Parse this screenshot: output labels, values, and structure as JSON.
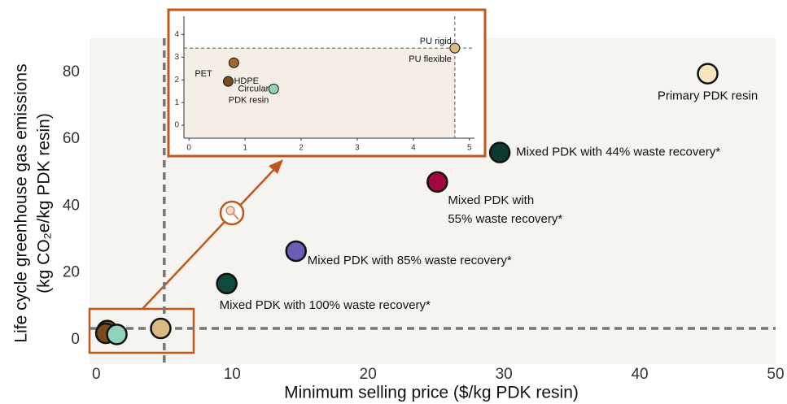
{
  "chart_data": [
    {
      "type": "scatter",
      "x_label": "Minimum selling price ($/kg PDK resin)",
      "y_label": [
        "Life cycle greenhouse gas emissions",
        "(kg CO₂e/kg PDK resin)"
      ],
      "xlim": [
        -0.5,
        50
      ],
      "ylim": [
        -7.3,
        90.2
      ],
      "xticks": [
        0,
        10,
        20,
        30,
        40,
        50
      ],
      "yticks": [
        0,
        20,
        40,
        60,
        80
      ],
      "hline": 3.4,
      "vline": 5,
      "points": [
        {
          "x": 45,
          "y": 79.6,
          "color": "#f7e5c0",
          "label": [
            "Primary PDK resin"
          ]
        },
        {
          "x": 29.7,
          "y": 56,
          "color": "#0d3b31",
          "label": [
            "Mixed PDK with 44% waste recovery*"
          ]
        },
        {
          "x": 25.1,
          "y": 47.2,
          "color": "#a3063f",
          "label": [
            "Mixed PDK with",
            "55% waste recovery*"
          ]
        },
        {
          "x": 14.7,
          "y": 26.5,
          "color": "#6a5db3",
          "label": [
            "Mixed PDK with 85% waste recovery*"
          ]
        },
        {
          "x": 9.6,
          "y": 16.8,
          "color": "#0f4a3e",
          "label": [
            "Mixed PDK with 100% waste recovery*"
          ]
        },
        {
          "x": 0.8,
          "y": 2.75,
          "color": "#a0682b"
        },
        {
          "x": 0.7,
          "y": 1.93,
          "color": "#7a4a1a"
        },
        {
          "x": 1.51,
          "y": 1.6,
          "color": "#8fd1bd"
        },
        {
          "x": 4.74,
          "y": 3.4,
          "color": "#d9bb82"
        }
      ]
    },
    {
      "type": "scatter",
      "xlim": [
        -0.09,
        5.09
      ],
      "ylim": [
        -0.57,
        4.8
      ],
      "xticks": [
        0,
        1,
        2,
        3,
        4,
        5
      ],
      "yticks": [
        0,
        1,
        2,
        3,
        4
      ],
      "hline": 3.4,
      "vline": 4.74,
      "points": [
        {
          "x": 4.74,
          "y": 3.4,
          "color": "#d9bb82",
          "label": [
            "PU rigid",
            "PU flexible"
          ]
        },
        {
          "x": 0.8,
          "y": 2.75,
          "color": "#a0682b",
          "label": [
            "PET"
          ]
        },
        {
          "x": 0.7,
          "y": 1.93,
          "color": "#7a4a1a",
          "label": [
            "HDPE"
          ]
        },
        {
          "x": 1.51,
          "y": 1.6,
          "color": "#8fd1bd",
          "label": [
            "Circular",
            "PDK resin"
          ]
        }
      ]
    }
  ]
}
